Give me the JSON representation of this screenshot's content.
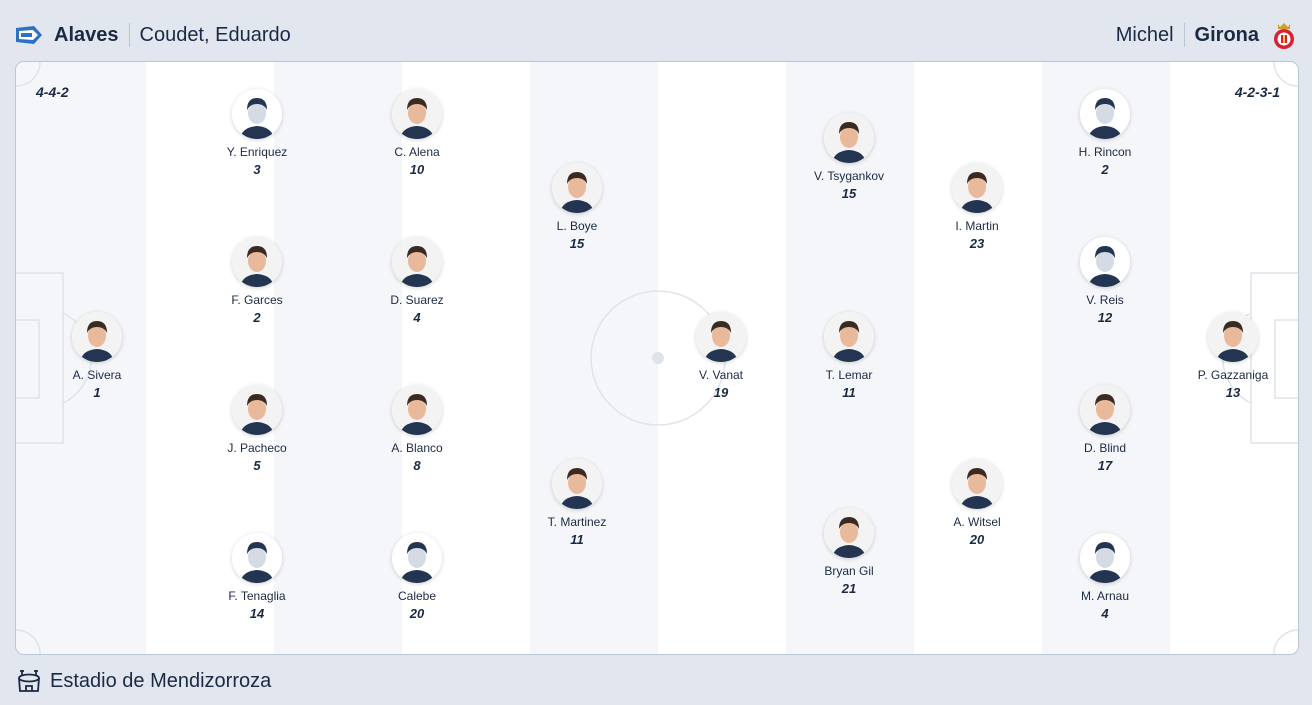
{
  "home": {
    "team": "Alaves",
    "coach": "Coudet, Eduardo",
    "formation": "4-4-2",
    "crest_icon": "alaves-crest-icon",
    "players": [
      {
        "name": "A. Sivera",
        "number": "1",
        "photo": true
      },
      {
        "name": "Y. Enriquez",
        "number": "3",
        "photo": false
      },
      {
        "name": "F. Garces",
        "number": "2",
        "photo": true
      },
      {
        "name": "J. Pacheco",
        "number": "5",
        "photo": true
      },
      {
        "name": "F. Tenaglia",
        "number": "14",
        "photo": false
      },
      {
        "name": "C. Alena",
        "number": "10",
        "photo": true
      },
      {
        "name": "D. Suarez",
        "number": "4",
        "photo": true
      },
      {
        "name": "A. Blanco",
        "number": "8",
        "photo": true
      },
      {
        "name": "Calebe",
        "number": "20",
        "photo": false
      },
      {
        "name": "L. Boye",
        "number": "15",
        "photo": true
      },
      {
        "name": "T. Martinez",
        "number": "11",
        "photo": true
      }
    ]
  },
  "away": {
    "team": "Girona",
    "coach": "Michel",
    "formation": "4-2-3-1",
    "crest_icon": "girona-crest-icon",
    "players": [
      {
        "name": "V. Vanat",
        "number": "19",
        "photo": true
      },
      {
        "name": "V. Tsygankov",
        "number": "15",
        "photo": true
      },
      {
        "name": "T. Lemar",
        "number": "11",
        "photo": true
      },
      {
        "name": "Bryan Gil",
        "number": "21",
        "photo": true
      },
      {
        "name": "I. Martin",
        "number": "23",
        "photo": true
      },
      {
        "name": "A. Witsel",
        "number": "20",
        "photo": true
      },
      {
        "name": "H. Rincon",
        "number": "2",
        "photo": false
      },
      {
        "name": "V. Reis",
        "number": "12",
        "photo": false
      },
      {
        "name": "D. Blind",
        "number": "17",
        "photo": true
      },
      {
        "name": "M. Arnau",
        "number": "4",
        "photo": false
      },
      {
        "name": "P. Gazzaniga",
        "number": "13",
        "photo": true
      }
    ]
  },
  "venue": {
    "name": "Estadio de Mendizorroza",
    "icon": "stadium-icon"
  },
  "colors": {
    "text": "#1b2a44",
    "background": "#e2e7ef",
    "stripe": "#f4f6f9",
    "lines": "#dfe4ea"
  }
}
